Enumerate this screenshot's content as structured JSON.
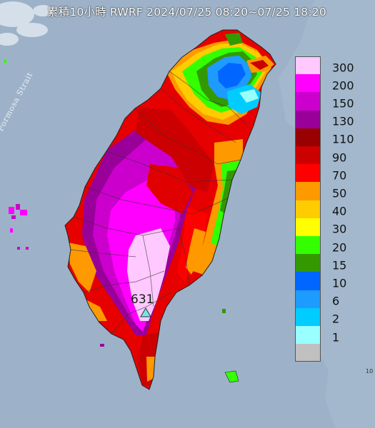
{
  "title": "累積10小時 RWRF 2024/07/25 08:20~07/25 18:20",
  "strait_label": "Formosa Strait",
  "station": {
    "value": "631",
    "marker_icon": "triangle-marker-icon"
  },
  "edge_number": "10",
  "legend": [
    {
      "label": "300",
      "color": "#ffc8ff"
    },
    {
      "label": "200",
      "color": "#ff00ff"
    },
    {
      "label": "150",
      "color": "#cc00cc"
    },
    {
      "label": "130",
      "color": "#990099"
    },
    {
      "label": "110",
      "color": "#990000"
    },
    {
      "label": "90",
      "color": "#cc0000"
    },
    {
      "label": "70",
      "color": "#ff0000"
    },
    {
      "label": "50",
      "color": "#ff9900"
    },
    {
      "label": "40",
      "color": "#ffcc00"
    },
    {
      "label": "30",
      "color": "#ffff00"
    },
    {
      "label": "20",
      "color": "#33ff00"
    },
    {
      "label": "15",
      "color": "#339900"
    },
    {
      "label": "10",
      "color": "#0066ff"
    },
    {
      "label": "6",
      "color": "#1e9bff"
    },
    {
      "label": "2",
      "color": "#00ccff"
    },
    {
      "label": "1",
      "color": "#99ffff"
    },
    {
      "label": "",
      "color": "#c0c0c0"
    }
  ]
}
